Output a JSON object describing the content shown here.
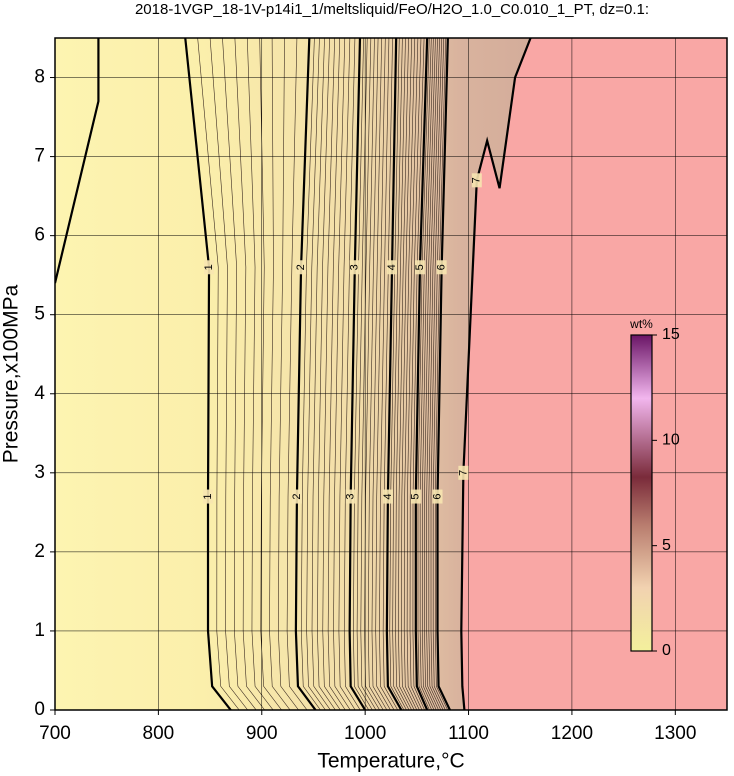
{
  "chart_data": {
    "type": "contour",
    "title": "2018-1VGP_18-1V-p14i1_1/meltsliquid/FeO/H2O_1.0_C0.010_1_PT, dz=0.1:",
    "x_label": "Temperature,°C",
    "y_label": "Pressure,x100MPa",
    "xlim": [
      700,
      1350
    ],
    "xticks": [
      700,
      800,
      900,
      1000,
      1100,
      1200,
      1300
    ],
    "ylim": [
      0,
      8.5
    ],
    "yticks": [
      0,
      1,
      2,
      3,
      4,
      5,
      6,
      7,
      8
    ],
    "grid": true,
    "series": [
      {
        "name": "1",
        "temperature": [
          870,
          852,
          848,
          848,
          849,
          826,
          null,
          700,
          742,
          742
        ],
        "pressure": [
          0,
          0.3,
          1,
          2.7,
          5.6,
          8.5,
          null,
          5.4,
          7.7,
          8.5
        ]
      },
      {
        "name": "2",
        "temperature": [
          952,
          935,
          933,
          934,
          938,
          946
        ],
        "pressure": [
          0,
          0.3,
          1,
          2.7,
          5.6,
          8.5
        ]
      },
      {
        "name": "3",
        "temperature": [
          1000,
          986,
          985,
          986,
          990,
          995
        ],
        "pressure": [
          0,
          0.3,
          1,
          2.7,
          5.6,
          8.5
        ]
      },
      {
        "name": "4",
        "temperature": [
          1035,
          1022,
          1021,
          1022,
          1026,
          1030
        ],
        "pressure": [
          0,
          0.3,
          1,
          2.7,
          5.6,
          8.5
        ]
      },
      {
        "name": "5",
        "temperature": [
          1060,
          1050,
          1049,
          1049,
          1053,
          1060
        ],
        "pressure": [
          0,
          0.3,
          1,
          2.7,
          5.6,
          8.5
        ]
      },
      {
        "name": "6",
        "temperature": [
          1082,
          1071,
          1070,
          1070,
          1074,
          1080
        ],
        "pressure": [
          0,
          0.3,
          1,
          2.7,
          5.6,
          8.5
        ]
      },
      {
        "name": "7",
        "temperature": [
          1096,
          1094,
          1093,
          1095,
          1108,
          1118,
          1130,
          1145,
          1160
        ],
        "pressure": [
          0,
          0.3,
          1,
          3,
          6.7,
          7.2,
          6.6,
          8,
          8.5
        ]
      }
    ],
    "colorbar": {
      "label": "wt%",
      "lim": [
        0,
        15
      ],
      "ticks": [
        0,
        5,
        10,
        15
      ]
    }
  }
}
